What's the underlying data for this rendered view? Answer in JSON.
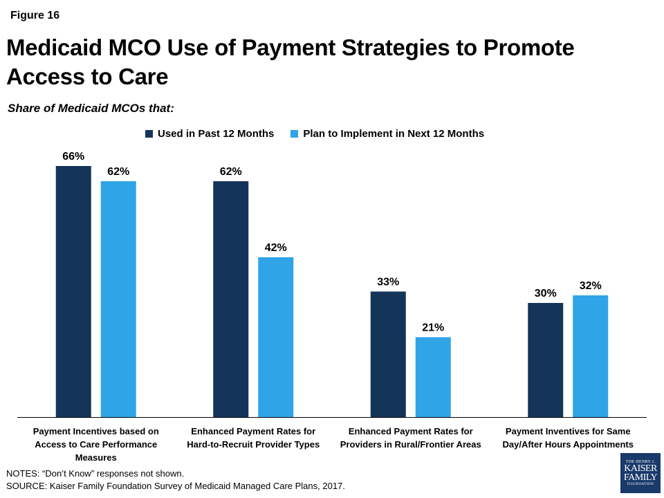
{
  "figure_label": "Figure 16",
  "title": "Medicaid MCO Use of Payment Strategies to Promote Access to Care",
  "subtitle": "Share of Medicaid MCOs that:",
  "notes": {
    "line1": "NOTES: “Don’t Know” responses not shown.",
    "line2": "SOURCE: Kaiser Family Foundation Survey of Medicaid Managed Care Plans, 2017."
  },
  "logo": {
    "line1": "THE HENRY J.",
    "line2": "KAISER",
    "line3": "FAMILY",
    "line4": "FOUNDATION"
  },
  "colors": {
    "series1": "#15345a",
    "series2": "#2fa4e7"
  },
  "chart_data": {
    "type": "bar",
    "title": "Medicaid MCO Use of Payment Strategies to Promote Access to Care",
    "subtitle": "Share of Medicaid MCOs that:",
    "categories": [
      [
        "Payment Incentives based on",
        "Access to Care Performance",
        "Measures"
      ],
      [
        "Enhanced Payment Rates for",
        "Hard-to-Recruit Provider Types"
      ],
      [
        "Enhanced Payment Rates for",
        "Providers in Rural/Frontier Areas"
      ],
      [
        "Payment Inventives for Same",
        "Day/After Hours Appointments"
      ]
    ],
    "series": [
      {
        "name": "Used in Past 12 Months",
        "values": [
          66,
          62,
          33,
          30
        ],
        "labels": [
          "66%",
          "62%",
          "33%",
          "30%"
        ]
      },
      {
        "name": "Plan to Implement in Next 12 Months",
        "values": [
          62,
          42,
          21,
          32
        ],
        "labels": [
          "62%",
          "42%",
          "21%",
          "32%"
        ]
      }
    ],
    "ylim": [
      0,
      100
    ],
    "legend": "top",
    "grid": false
  }
}
